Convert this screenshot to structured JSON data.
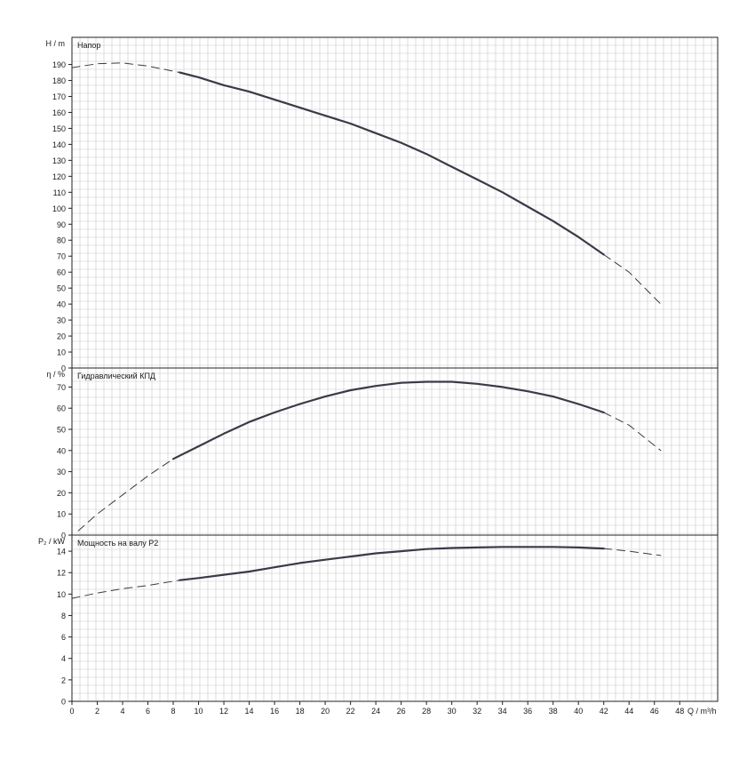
{
  "chart_data": [
    {
      "type": "line",
      "title": "Напор",
      "ylabel": "H / m",
      "ylim": [
        0,
        207
      ],
      "yticks": [
        0,
        10,
        20,
        30,
        40,
        50,
        60,
        70,
        80,
        90,
        100,
        110,
        120,
        130,
        140,
        150,
        160,
        170,
        180,
        190
      ],
      "series": [
        {
          "style": "solid",
          "x": [
            8.5,
            10,
            12,
            14,
            16,
            18,
            20,
            22,
            24,
            26,
            28,
            30,
            32,
            34,
            36,
            38,
            40,
            42
          ],
          "y": [
            185,
            182,
            177,
            173,
            168,
            163,
            158,
            153,
            147,
            141,
            134,
            126,
            118,
            110,
            101,
            92,
            82,
            71
          ]
        },
        {
          "style": "dashed",
          "x": [
            0,
            2,
            4,
            6,
            8.5
          ],
          "y": [
            188,
            190.5,
            191,
            189,
            185
          ]
        },
        {
          "style": "dashed",
          "x": [
            42,
            44,
            46.5
          ],
          "y": [
            71,
            60,
            40
          ]
        }
      ]
    },
    {
      "type": "line",
      "title": "Гидравлический КПД",
      "ylabel": "η / %",
      "ylim": [
        0,
        79
      ],
      "yticks": [
        0,
        10,
        20,
        30,
        40,
        50,
        60,
        70
      ],
      "series": [
        {
          "style": "solid",
          "x": [
            8,
            10,
            12,
            14,
            16,
            18,
            20,
            22,
            24,
            26,
            28,
            30,
            32,
            34,
            36,
            38,
            40,
            42
          ],
          "y": [
            36,
            42,
            48,
            53.5,
            58,
            62,
            65.5,
            68.5,
            70.5,
            72,
            72.5,
            72.5,
            71.5,
            70,
            68,
            65.5,
            62,
            58
          ]
        },
        {
          "style": "dashed",
          "x": [
            0.5,
            2,
            4,
            6,
            8
          ],
          "y": [
            2,
            10,
            19,
            28,
            36
          ]
        },
        {
          "style": "dashed",
          "x": [
            42,
            44,
            46.5
          ],
          "y": [
            58,
            52,
            40
          ]
        }
      ]
    },
    {
      "type": "line",
      "title": "Мощность на валу P2",
      "ylabel": "P₂ / kW",
      "ylim": [
        0,
        15.5
      ],
      "yticks": [
        0,
        2,
        4,
        6,
        8,
        10,
        12,
        14
      ],
      "series": [
        {
          "style": "solid",
          "x": [
            8.5,
            10,
            12,
            14,
            16,
            18,
            20,
            22,
            24,
            26,
            28,
            30,
            32,
            34,
            36,
            38,
            40,
            42
          ],
          "y": [
            11.3,
            11.5,
            11.8,
            12.1,
            12.5,
            12.9,
            13.2,
            13.5,
            13.8,
            14.0,
            14.2,
            14.3,
            14.35,
            14.4,
            14.4,
            14.4,
            14.35,
            14.25
          ]
        },
        {
          "style": "dashed",
          "x": [
            0,
            2,
            4,
            6,
            8.5
          ],
          "y": [
            9.6,
            10.1,
            10.5,
            10.8,
            11.3
          ]
        },
        {
          "style": "dashed",
          "x": [
            42,
            44,
            46.5
          ],
          "y": [
            14.25,
            14.0,
            13.6
          ]
        }
      ]
    }
  ],
  "xaxis": {
    "xlabel": "Q / m³/h",
    "xlim": [
      0,
      51
    ],
    "xticks": [
      0,
      2,
      4,
      6,
      8,
      10,
      12,
      14,
      16,
      18,
      20,
      22,
      24,
      26,
      28,
      30,
      32,
      34,
      36,
      38,
      40,
      42,
      44,
      46,
      48
    ]
  },
  "grid": true,
  "line_color": "#3a3a48"
}
